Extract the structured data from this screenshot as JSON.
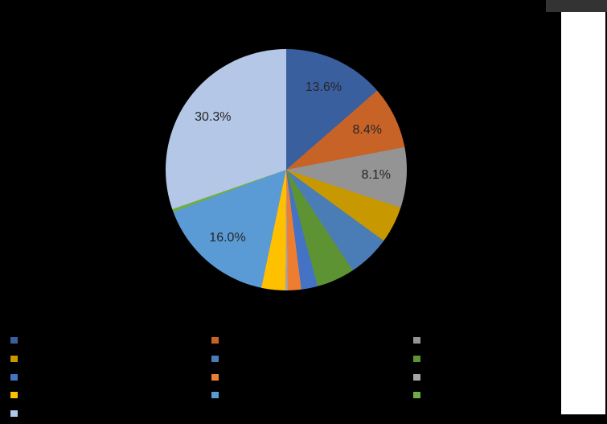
{
  "ui": {
    "background_color": "#000000",
    "top_right_bar_color": "#333333",
    "side_panel_color": "#FFFFFF"
  },
  "chart_data": {
    "type": "pie",
    "title": "",
    "start_angle_deg": 0,
    "direction": "clockwise",
    "values": [
      13.6,
      8.4,
      8.1,
      4.9,
      5.7,
      5.1,
      2.2,
      1.8,
      0.3,
      3.2,
      16.0,
      0.4,
      30.3
    ],
    "colors": [
      "#3A5F9F",
      "#C86328",
      "#949494",
      "#C79800",
      "#4A7DB5",
      "#5E9334",
      "#4472C4",
      "#ED7D31",
      "#A5A5A5",
      "#FFC000",
      "#5B9BD5",
      "#6FAE45",
      "#B4C7E7"
    ],
    "data_labels": [
      {
        "index": 0,
        "text": "13.6%"
      },
      {
        "index": 1,
        "text": "8.4%"
      },
      {
        "index": 2,
        "text": "8.1%"
      },
      {
        "index": 10,
        "text": "16.0%"
      },
      {
        "index": 12,
        "text": "30.3%"
      }
    ],
    "data_label_color": "#262626",
    "legend": {
      "position": "bottom",
      "columns": 3,
      "entries": 13,
      "fill_order": "row-major",
      "labels_visible": false,
      "swatch_colors": [
        "#3A5F9F",
        "#C86328",
        "#949494",
        "#C79800",
        "#4A7DB5",
        "#5E9334",
        "#4472C4",
        "#ED7D31",
        "#A5A5A5",
        "#FFC000",
        "#5B9BD5",
        "#6FAE45",
        "#B4C7E7"
      ]
    }
  }
}
